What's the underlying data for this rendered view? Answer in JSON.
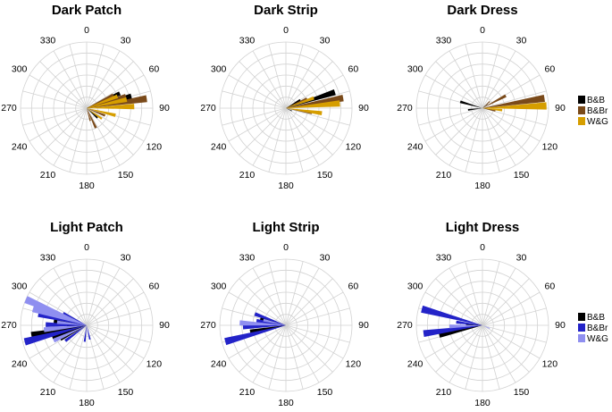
{
  "chart_data": [
    {
      "type": "polar-bar",
      "title": "Dark Patch",
      "theta_ticks": [
        "0",
        "30",
        "60",
        "90",
        "120",
        "150",
        "180",
        "210",
        "240",
        "270",
        "300",
        "330"
      ],
      "series": [
        {
          "name": "B&B",
          "color": "#000000",
          "bars": [
            {
              "angle": 66,
              "r": 0.55
            },
            {
              "angle": 75,
              "r": 0.7
            },
            {
              "angle": 132,
              "r": 0.22
            }
          ]
        },
        {
          "name": "B&Br",
          "color": "#7a4a1a",
          "bars": [
            {
              "angle": 64,
              "r": 0.45
            },
            {
              "angle": 73,
              "r": 0.62
            },
            {
              "angle": 81,
              "r": 0.92
            },
            {
              "angle": 112,
              "r": 0.3
            },
            {
              "angle": 155,
              "r": 0.33
            },
            {
              "angle": 164,
              "r": 0.2
            }
          ]
        },
        {
          "name": "W&G",
          "color": "#d69e00",
          "bars": [
            {
              "angle": 69,
              "r": 0.5
            },
            {
              "angle": 78,
              "r": 0.62
            },
            {
              "angle": 88,
              "r": 0.72
            },
            {
              "angle": 104,
              "r": 0.45
            },
            {
              "angle": 125,
              "r": 0.28
            }
          ]
        }
      ]
    },
    {
      "type": "polar-bar",
      "title": "Dark Strip",
      "theta_ticks": [
        "0",
        "30",
        "60",
        "90",
        "120",
        "150",
        "180",
        "210",
        "240",
        "270",
        "300",
        "330"
      ],
      "series": [
        {
          "name": "B&B",
          "color": "#000000",
          "bars": [
            {
              "angle": 60,
              "r": 0.25
            },
            {
              "angle": 72,
              "r": 0.78
            },
            {
              "angle": 115,
              "r": 0.1
            }
          ]
        },
        {
          "name": "B&Br",
          "color": "#7a4a1a",
          "bars": [
            {
              "angle": 66,
              "r": 0.35
            },
            {
              "angle": 80,
              "r": 0.88
            },
            {
              "angle": 100,
              "r": 0.4
            }
          ]
        },
        {
          "name": "W&G",
          "color": "#d69e00",
          "bars": [
            {
              "angle": 70,
              "r": 0.45
            },
            {
              "angle": 85,
              "r": 0.82
            },
            {
              "angle": 98,
              "r": 0.55
            }
          ]
        }
      ]
    },
    {
      "type": "polar-bar",
      "title": "Dark Dress",
      "theta_ticks": [
        "0",
        "30",
        "60",
        "90",
        "120",
        "150",
        "180",
        "210",
        "240",
        "270",
        "300",
        "330"
      ],
      "series": [
        {
          "name": "B&B",
          "color": "#000000",
          "bars": [
            {
              "angle": 50,
              "r": 0.1
            },
            {
              "angle": 286,
              "r": 0.35
            },
            {
              "angle": 263,
              "r": 0.22
            },
            {
              "angle": 99,
              "r": 0.15
            }
          ]
        },
        {
          "name": "B&Br",
          "color": "#7a4a1a",
          "bars": [
            {
              "angle": 48,
              "r": 0.15
            },
            {
              "angle": 62,
              "r": 0.4
            },
            {
              "angle": 81,
              "r": 0.95
            },
            {
              "angle": 102,
              "r": 0.2
            }
          ]
        },
        {
          "name": "W&G",
          "color": "#d69e00",
          "bars": [
            {
              "angle": 88,
              "r": 0.97
            },
            {
              "angle": 96,
              "r": 0.3
            }
          ]
        }
      ]
    },
    {
      "type": "polar-bar",
      "title": "Light Patch",
      "theta_ticks": [
        "0",
        "30",
        "60",
        "90",
        "120",
        "150",
        "180",
        "210",
        "240",
        "270",
        "300",
        "330"
      ],
      "series": [
        {
          "name": "B&B",
          "color": "#000000",
          "bars": [
            {
              "angle": 260,
              "r": 0.85
            },
            {
              "angle": 250,
              "r": 0.55
            },
            {
              "angle": 242,
              "r": 0.45
            },
            {
              "angle": 277,
              "r": 0.5
            },
            {
              "angle": 268,
              "r": 0.3
            }
          ]
        },
        {
          "name": "B&Br",
          "color": "#2323c8",
          "bars": [
            {
              "angle": 283,
              "r": 0.75
            },
            {
              "angle": 255,
              "r": 0.97
            },
            {
              "angle": 271,
              "r": 0.62
            },
            {
              "angle": 297,
              "r": 0.4
            },
            {
              "angle": 234,
              "r": 0.4
            },
            {
              "angle": 187,
              "r": 0.25
            },
            {
              "angle": 167,
              "r": 0.22
            }
          ]
        },
        {
          "name": "W&G",
          "color": "#8f8ff0",
          "bars": [
            {
              "angle": 293,
              "r": 1.0
            },
            {
              "angle": 287,
              "r": 0.85
            },
            {
              "angle": 276,
              "r": 0.45
            },
            {
              "angle": 264,
              "r": 0.65
            },
            {
              "angle": 245,
              "r": 0.55
            }
          ]
        }
      ]
    },
    {
      "type": "polar-bar",
      "title": "Light Strip",
      "theta_ticks": [
        "0",
        "30",
        "60",
        "90",
        "120",
        "150",
        "180",
        "210",
        "240",
        "270",
        "300",
        "330"
      ],
      "series": [
        {
          "name": "B&B",
          "color": "#000000",
          "bars": [
            {
              "angle": 260,
              "r": 0.55
            },
            {
              "angle": 275,
              "r": 0.35
            },
            {
              "angle": 285,
              "r": 0.4
            }
          ]
        },
        {
          "name": "B&Br",
          "color": "#2323c8",
          "bars": [
            {
              "angle": 255,
              "r": 0.95
            },
            {
              "angle": 268,
              "r": 0.65
            },
            {
              "angle": 279,
              "r": 0.45
            },
            {
              "angle": 290,
              "r": 0.5
            }
          ]
        },
        {
          "name": "W&G",
          "color": "#8f8ff0",
          "bars": [
            {
              "angle": 273,
              "r": 0.7
            },
            {
              "angle": 283,
              "r": 0.35
            }
          ]
        }
      ]
    },
    {
      "type": "polar-bar",
      "title": "Light Dress",
      "theta_ticks": [
        "0",
        "30",
        "60",
        "90",
        "120",
        "150",
        "180",
        "210",
        "240",
        "270",
        "300",
        "330"
      ],
      "series": [
        {
          "name": "B&B",
          "color": "#000000",
          "bars": [
            {
              "angle": 257,
              "r": 0.67
            },
            {
              "angle": 272,
              "r": 0.25
            }
          ]
        },
        {
          "name": "B&Br",
          "color": "#2323c8",
          "bars": [
            {
              "angle": 285,
              "r": 0.95
            },
            {
              "angle": 262,
              "r": 0.9
            },
            {
              "angle": 277,
              "r": 0.4
            }
          ]
        },
        {
          "name": "W&G",
          "color": "#8f8ff0",
          "bars": [
            {
              "angle": 268,
              "r": 0.5
            },
            {
              "angle": 113,
              "r": 0.12
            }
          ]
        }
      ]
    }
  ],
  "legends": [
    {
      "items": [
        {
          "label": "B&B",
          "color": "#000000"
        },
        {
          "label": "B&Br",
          "color": "#7a4a1a"
        },
        {
          "label": "W&G",
          "color": "#d69e00"
        }
      ]
    },
    {
      "items": [
        {
          "label": "B&B",
          "color": "#000000"
        },
        {
          "label": "B&Br",
          "color": "#2323c8"
        },
        {
          "label": "W&G",
          "color": "#8f8ff0"
        }
      ]
    }
  ]
}
